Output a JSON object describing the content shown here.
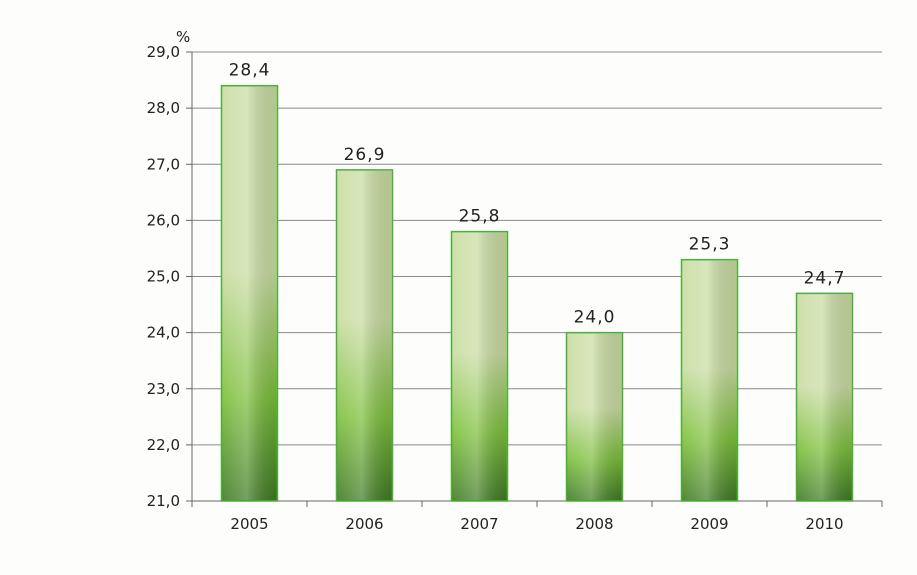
{
  "chart_data": {
    "type": "bar",
    "title": "",
    "xlabel": "",
    "ylabel": "%",
    "categories": [
      "2005",
      "2006",
      "2007",
      "2008",
      "2009",
      "2010"
    ],
    "values": [
      28.4,
      26.9,
      25.8,
      24.0,
      25.3,
      24.7
    ],
    "value_labels": [
      "28,4",
      "26,9",
      "25,8",
      "24,0",
      "25,3",
      "24,7"
    ],
    "ylim": [
      21.0,
      29.0
    ],
    "yticks": [
      21.0,
      22.0,
      23.0,
      24.0,
      25.0,
      26.0,
      27.0,
      28.0,
      29.0
    ],
    "ytick_labels": [
      "21,0",
      "22,0",
      "23,0",
      "24,0",
      "25,0",
      "26,0",
      "27,0",
      "28,0",
      "29,0"
    ],
    "grid": true,
    "legend": "none",
    "colors": {
      "bar_light": "#c9dca2",
      "bar_mid": "#7cbf3a",
      "bar_dark": "#3f7a24",
      "bar_stroke": "#4caf3a",
      "grid": "#8a8a8a",
      "axis": "#666666"
    }
  }
}
